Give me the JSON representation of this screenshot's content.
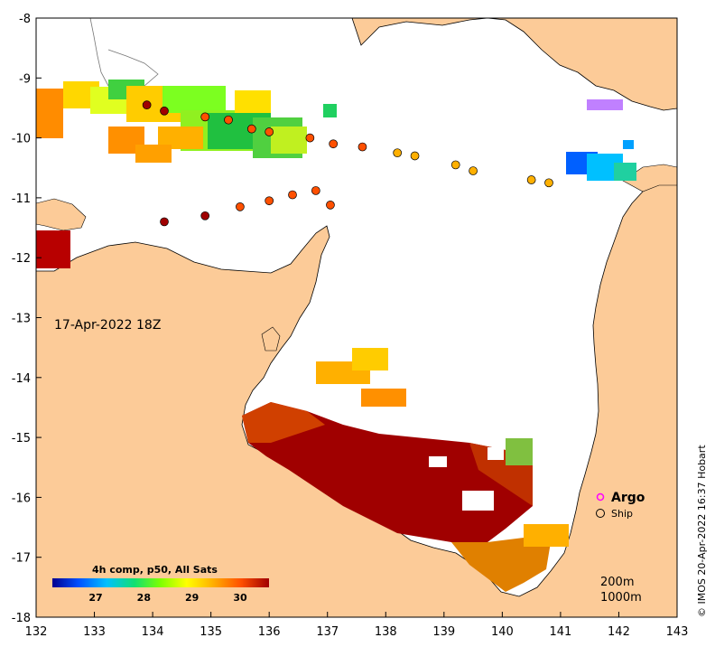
{
  "map": {
    "timestamp": "17-Apr-2022 18Z",
    "credit": "© IMOS 20-Apr-2022 16:37 Hobart",
    "lon_ticks": [
      "132",
      "133",
      "134",
      "135",
      "136",
      "137",
      "138",
      "139",
      "140",
      "141",
      "142",
      "143"
    ],
    "lat_ticks": [
      "-8",
      "-9",
      "-10",
      "-11",
      "-12",
      "-13",
      "-14",
      "-15",
      "-16",
      "-17",
      "-18"
    ],
    "extent": {
      "lon": [
        132,
        143
      ],
      "lat": [
        -18,
        -8
      ]
    },
    "legend": {
      "argo_label": "Argo",
      "ship_label": "Ship",
      "argo_color": "#ff00ff",
      "ship_color": "#000000"
    },
    "depth_labels": [
      "200m",
      "1000m"
    ],
    "land_color": "#fccb98",
    "sea_color": "#ffffff",
    "no_data_color": "#ffffff"
  },
  "colorbar": {
    "title": "4h comp, p50, All Sats",
    "tick_labels": [
      "27",
      "28",
      "29",
      "30"
    ],
    "range": [
      26.1,
      30.6
    ],
    "colors": [
      "#00008f",
      "#0050ff",
      "#00c0ff",
      "#10e070",
      "#80ff00",
      "#ffff00",
      "#ffb000",
      "#ff5000",
      "#a00000"
    ]
  },
  "ship_track": [
    {
      "lon": 133.9,
      "lat": -9.45,
      "sst": 30.8
    },
    {
      "lon": 134.2,
      "lat": -9.55,
      "sst": 30.6
    },
    {
      "lon": 134.9,
      "lat": -9.65,
      "sst": 30.3
    },
    {
      "lon": 135.3,
      "lat": -9.7,
      "sst": 30.2
    },
    {
      "lon": 135.7,
      "lat": -9.85,
      "sst": 30.0
    },
    {
      "lon": 136.0,
      "lat": -9.9,
      "sst": 29.9
    },
    {
      "lon": 136.7,
      "lat": -10.0,
      "sst": 30.1
    },
    {
      "lon": 137.1,
      "lat": -10.1,
      "sst": 29.8
    },
    {
      "lon": 137.6,
      "lat": -10.15,
      "sst": 30.0
    },
    {
      "lon": 138.2,
      "lat": -10.25,
      "sst": 29.6
    },
    {
      "lon": 138.5,
      "lat": -10.3,
      "sst": 29.6
    },
    {
      "lon": 139.2,
      "lat": -10.45,
      "sst": 29.5
    },
    {
      "lon": 139.5,
      "lat": -10.55,
      "sst": 29.5
    },
    {
      "lon": 140.5,
      "lat": -10.7,
      "sst": 29.7
    },
    {
      "lon": 140.8,
      "lat": -10.75,
      "sst": 29.7
    },
    {
      "lon": 134.2,
      "lat": -11.4,
      "sst": 30.8
    },
    {
      "lon": 134.9,
      "lat": -11.3,
      "sst": 30.6
    },
    {
      "lon": 135.5,
      "lat": -11.15,
      "sst": 30.3
    },
    {
      "lon": 136.0,
      "lat": -11.05,
      "sst": 30.2
    },
    {
      "lon": 136.4,
      "lat": -10.95,
      "sst": 30.1
    },
    {
      "lon": 136.8,
      "lat": -10.88,
      "sst": 29.9
    },
    {
      "lon": 137.05,
      "lat": -11.12,
      "sst": 30.0
    }
  ]
}
